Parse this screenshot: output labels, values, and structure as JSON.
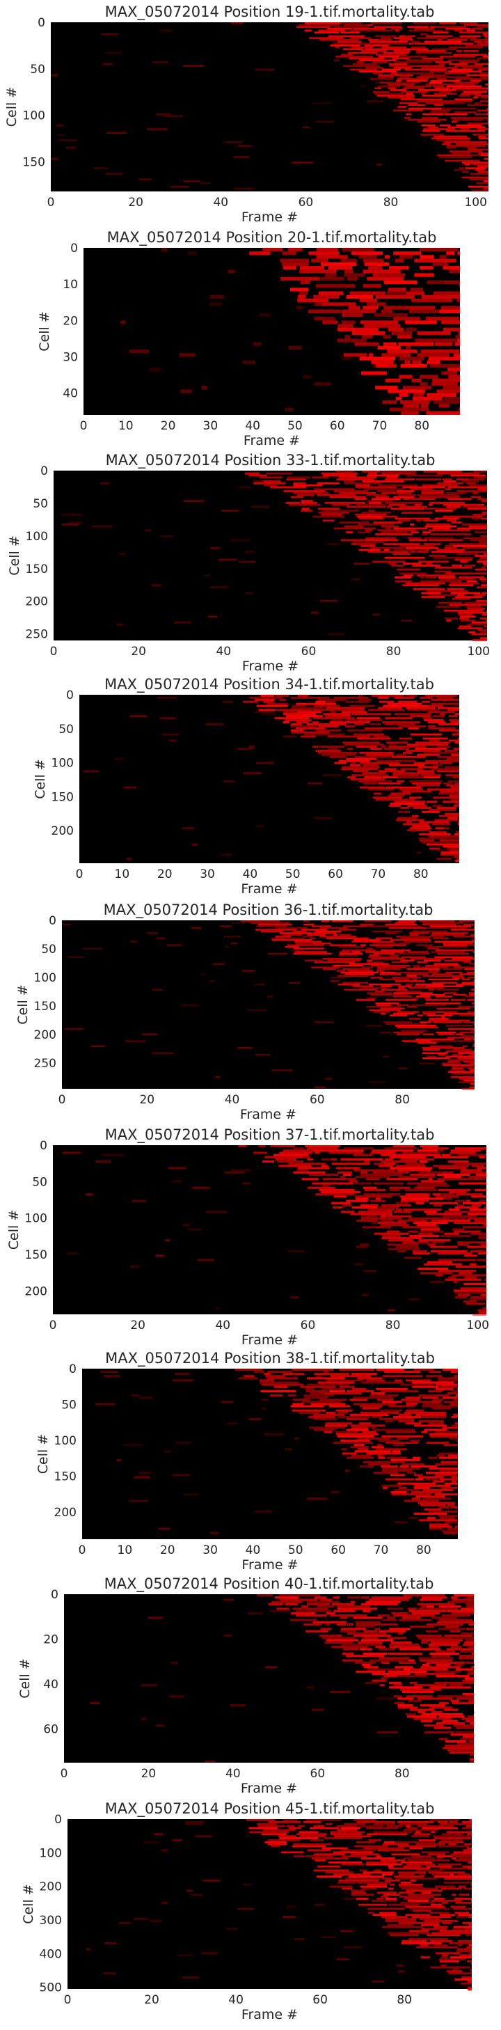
{
  "figure": {
    "background": "#ffffff",
    "colormap": [
      "#000000",
      "#ff0000"
    ],
    "xlabel": "Frame #",
    "ylabel": "Cell #"
  },
  "chart_data": [
    {
      "type": "heatmap",
      "title": "MAX_05072014 Position 19-1.tif.mortality.tab",
      "xlabel": "Frame #",
      "ylabel": "Cell #",
      "xlim": [
        0,
        103
      ],
      "ylim": [
        182,
        0
      ],
      "xticks": [
        0,
        20,
        40,
        60,
        80,
        100
      ],
      "yticks": [
        0,
        50,
        100,
        150
      ],
      "n_cells": 182,
      "n_frames": 103,
      "onset_frame_range": [
        58,
        102
      ],
      "grid": false
    },
    {
      "type": "heatmap",
      "title": "MAX_05072014 Position 20-1.tif.mortality.tab",
      "xlabel": "Frame #",
      "ylabel": "Cell #",
      "xlim": [
        0,
        89
      ],
      "ylim": [
        46,
        0
      ],
      "xticks": [
        0,
        10,
        20,
        30,
        40,
        50,
        60,
        70,
        80
      ],
      "yticks": [
        0,
        10,
        20,
        30,
        40
      ],
      "n_cells": 46,
      "n_frames": 89,
      "onset_frame_range": [
        40,
        76
      ],
      "grid": false
    },
    {
      "type": "heatmap",
      "title": "MAX_05072014 Position 33-1.tif.mortality.tab",
      "xlabel": "Frame #",
      "ylabel": "Cell #",
      "xlim": [
        0,
        102
      ],
      "ylim": [
        260,
        0
      ],
      "xticks": [
        0,
        20,
        40,
        60,
        80,
        100
      ],
      "yticks": [
        0,
        50,
        100,
        150,
        200,
        250
      ],
      "n_cells": 260,
      "n_frames": 102,
      "onset_frame_range": [
        44,
        101
      ],
      "grid": false
    },
    {
      "type": "heatmap",
      "title": "MAX_05072014 Position 34-1.tif.mortality.tab",
      "xlabel": "Frame #",
      "ylabel": "Cell #",
      "xlim": [
        0,
        89
      ],
      "ylim": [
        248,
        0
      ],
      "xticks": [
        0,
        10,
        20,
        30,
        40,
        50,
        60,
        70,
        80
      ],
      "yticks": [
        0,
        50,
        100,
        150,
        200
      ],
      "n_cells": 248,
      "n_frames": 89,
      "onset_frame_range": [
        38,
        88
      ],
      "grid": false
    },
    {
      "type": "heatmap",
      "title": "MAX_05072014 Position 36-1.tif.mortality.tab",
      "xlabel": "Frame #",
      "ylabel": "Cell #",
      "xlim": [
        0,
        97
      ],
      "ylim": [
        295,
        0
      ],
      "xticks": [
        0,
        20,
        40,
        60,
        80
      ],
      "yticks": [
        0,
        50,
        100,
        150,
        200,
        250
      ],
      "n_cells": 295,
      "n_frames": 97,
      "onset_frame_range": [
        44,
        96
      ],
      "grid": false
    },
    {
      "type": "heatmap",
      "title": "MAX_05072014 Position 37-1.tif.mortality.tab",
      "xlabel": "Frame #",
      "ylabel": "Cell #",
      "xlim": [
        0,
        102
      ],
      "ylim": [
        232,
        0
      ],
      "xticks": [
        0,
        20,
        40,
        60,
        80,
        100
      ],
      "yticks": [
        0,
        50,
        100,
        150,
        200
      ],
      "n_cells": 232,
      "n_frames": 102,
      "onset_frame_range": [
        45,
        101
      ],
      "grid": false
    },
    {
      "type": "heatmap",
      "title": "MAX_05072014 Position 38-1.tif.mortality.tab",
      "xlabel": "Frame #",
      "ylabel": "Cell #",
      "xlim": [
        0,
        88
      ],
      "ylim": [
        238,
        0
      ],
      "xticks": [
        0,
        10,
        20,
        30,
        40,
        50,
        60,
        70,
        80
      ],
      "yticks": [
        0,
        50,
        100,
        150,
        200
      ],
      "n_cells": 238,
      "n_frames": 88,
      "onset_frame_range": [
        35,
        87
      ],
      "grid": false
    },
    {
      "type": "heatmap",
      "title": "MAX_05072014 Position 40-1.tif.mortality.tab",
      "xlabel": "Frame #",
      "ylabel": "Cell #",
      "xlim": [
        0,
        97
      ],
      "ylim": [
        75,
        0
      ],
      "xticks": [
        0,
        20,
        40,
        60,
        80
      ],
      "yticks": [
        0,
        20,
        40,
        60
      ],
      "n_cells": 75,
      "n_frames": 97,
      "onset_frame_range": [
        46,
        96
      ],
      "grid": false
    },
    {
      "type": "heatmap",
      "title": "MAX_05072014 Position 45-1.tif.mortality.tab",
      "xlabel": "Frame #",
      "ylabel": "Cell #",
      "xlim": [
        0,
        96
      ],
      "ylim": [
        505,
        0
      ],
      "xticks": [
        0,
        20,
        40,
        60,
        80
      ],
      "yticks": [
        0,
        100,
        200,
        300,
        400,
        500
      ],
      "n_cells": 505,
      "n_frames": 96,
      "onset_frame_range": [
        40,
        95
      ],
      "grid": false
    }
  ]
}
